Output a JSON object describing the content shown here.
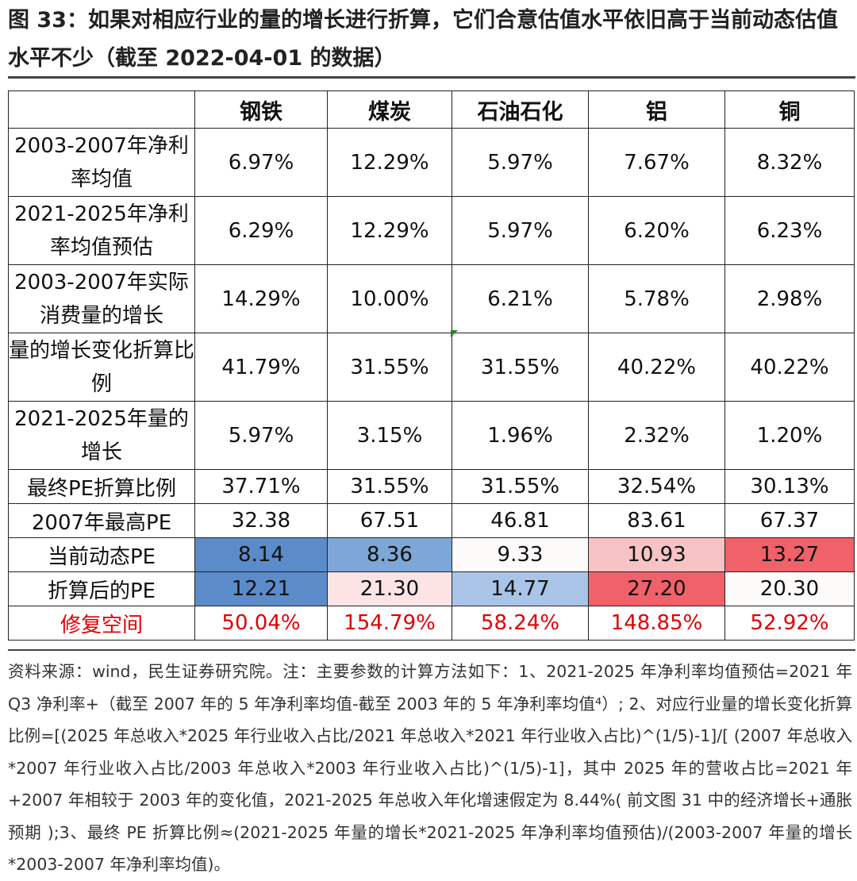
{
  "title": "图 33：如果对相应行业的量的增长进行折算，它们合意估值水平依旧高于当前动态估值水平不少（截至 2022-04-01 的数据）",
  "table": {
    "headers": [
      "钢铁",
      "煤炭",
      "石油石化",
      "铝",
      "铜"
    ],
    "rows": [
      {
        "label": "2003-2007年净利率均值",
        "values": [
          "6.97%",
          "12.29%",
          "5.97%",
          "7.67%",
          "8.32%"
        ]
      },
      {
        "label": "2021-2025年净利率均值预估",
        "values": [
          "6.29%",
          "12.29%",
          "5.97%",
          "6.20%",
          "6.23%"
        ]
      },
      {
        "label": "2003-2007年实际消费量的增长",
        "values": [
          "14.29%",
          "10.00%",
          "6.21%",
          "5.78%",
          "2.98%"
        ]
      },
      {
        "label": "量的增长变化折算比例",
        "values": [
          "41.79%",
          "31.55%",
          "31.55%",
          "40.22%",
          "40.22%"
        ]
      },
      {
        "label": "2021-2025年量的增长",
        "values": [
          "5.97%",
          "3.15%",
          "1.96%",
          "2.32%",
          "1.20%"
        ]
      },
      {
        "label": "最终PE折算比例",
        "values": [
          "37.71%",
          "31.55%",
          "31.55%",
          "32.54%",
          "30.13%"
        ]
      },
      {
        "label": "2007年最高PE",
        "values": [
          "32.38",
          "67.51",
          "46.81",
          "83.61",
          "67.37"
        ]
      },
      {
        "label": "当前动态PE",
        "values": [
          "8.14",
          "8.36",
          "9.33",
          "10.93",
          "13.27"
        ]
      },
      {
        "label": "折算后的PE",
        "values": [
          "12.21",
          "21.30",
          "14.77",
          "27.20",
          "20.30"
        ]
      },
      {
        "label": "修复空间",
        "values": [
          "50.04%",
          "154.79%",
          "58.24%",
          "148.85%",
          "52.92%"
        ]
      }
    ]
  },
  "colors": {
    "heat_blue_dark": "#5b8bc9",
    "heat_blue_mid": "#7ea6d6",
    "heat_blue_light": "#a9c4e6",
    "heat_white": "#fdfafa",
    "heat_pink_light": "#fce4e5",
    "heat_pink": "#f8c3c5",
    "heat_red": "#f0616a",
    "accent_red": "#e00000"
  },
  "note": "资料来源：wind，民生证券研究院。注：主要参数的计算方法如下：1、2021-2025 年净利率均值预估=2021 年 Q3 净利率+（截至 2007 年的 5 年净利率均值-截至 2003 年的 5 年净利率均值⁴）; 2、对应行业量的增长变化折算比例=[(2025 年总收入*2025 年行业收入占比/2021 年总收入*2021 年行业收入占比)^(1/5)-1]/[ (2007 年总收入*2007 年行业收入占比/2003 年总收入*2003 年行业收入占比)^(1/5)-1]，其中 2025 年的营收占比=2021 年+2007 年相较于 2003 年的变化值，2021-2025 年总收入年化增速假定为 8.44%( 前文图 31 中的经济增长+通胀预期 );3、最终 PE 折算比例≈(2021-2025 年量的增长*2021-2025 年净利率均值预估)/(2003-2007 年量的增长*2003-2007 年净利率均值)。"
}
